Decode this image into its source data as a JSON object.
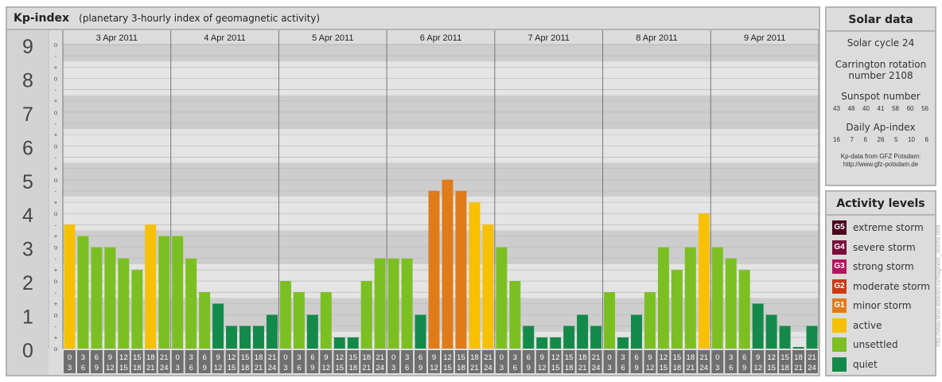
{
  "header": {
    "title": "Kp-index",
    "subtitle": "(planetary 3-hourly index of geomagnetic activity)"
  },
  "chart_data": {
    "type": "bar",
    "ylim": [
      0,
      9
    ],
    "y_tick_labels": [
      "0",
      "1",
      "2",
      "3",
      "4",
      "5",
      "6",
      "7",
      "8",
      "9"
    ],
    "minor_tick_labels": [
      "o",
      "+",
      "-"
    ],
    "days": [
      "3 Apr 2011",
      "4 Apr 2011",
      "5 Apr 2011",
      "6 Apr 2011",
      "7 Apr 2011",
      "8 Apr 2011",
      "9 Apr 2011"
    ],
    "interval_start_labels": [
      "0",
      "3",
      "6",
      "9",
      "12",
      "15",
      "18",
      "21"
    ],
    "interval_end_labels": [
      "3",
      "6",
      "9",
      "12",
      "15",
      "18",
      "21",
      "24"
    ],
    "values": [
      3.67,
      3.33,
      3.0,
      3.0,
      2.67,
      2.33,
      3.67,
      3.33,
      3.33,
      2.67,
      1.67,
      1.33,
      0.67,
      0.67,
      0.67,
      1.0,
      2.0,
      1.67,
      1.0,
      1.67,
      0.33,
      0.33,
      2.0,
      2.67,
      2.67,
      2.67,
      1.0,
      4.67,
      5.0,
      4.67,
      4.33,
      3.67,
      3.0,
      2.0,
      0.67,
      0.33,
      0.33,
      0.67,
      1.0,
      0.67,
      1.67,
      0.33,
      1.0,
      1.67,
      3.0,
      2.33,
      3.0,
      4.0,
      3.0,
      2.67,
      2.33,
      1.33,
      1.0,
      0.67,
      0.0,
      0.67
    ],
    "level_colors": {
      "quiet": "#138a4a",
      "unsettled": "#7cbf22",
      "active": "#f7c000",
      "G1": "#e07b1a",
      "G2": "#cc3a14",
      "G3": "#b3155e",
      "G4": "#7a0d3e",
      "G5": "#4a0520"
    },
    "grid": true
  },
  "solar": {
    "title": "Solar data",
    "cycle": "Solar cycle 24",
    "carrington_line1": "Carrington rotation",
    "carrington_line2": "number 2108",
    "sunspot_label": "Sunspot number",
    "sunspot_values": [
      "43",
      "48",
      "40",
      "41",
      "58",
      "60",
      "56"
    ],
    "ap_label": "Daily Ap-index",
    "ap_values": [
      "16",
      "7",
      "6",
      "26",
      "5",
      "10",
      "6"
    ],
    "source_line1": "Kp-data from GFZ Potsdam:",
    "source_line2": "http://www.gfz-potsdam.de"
  },
  "activity": {
    "title": "Activity levels",
    "items": [
      {
        "badge": "G5",
        "label": "extreme storm",
        "color": "#4a0520"
      },
      {
        "badge": "G4",
        "label": "severe storm",
        "color": "#7a0d3e"
      },
      {
        "badge": "G3",
        "label": "strong storm",
        "color": "#b3155e"
      },
      {
        "badge": "G2",
        "label": "moderate storm",
        "color": "#cc3a14"
      },
      {
        "badge": "G1",
        "label": "minor storm",
        "color": "#e07b1a"
      },
      {
        "badge": "",
        "label": "active",
        "color": "#f7c000"
      },
      {
        "badge": "",
        "label": "unsettled",
        "color": "#7cbf22"
      },
      {
        "badge": "",
        "label": "quiet",
        "color": "#138a4a"
      }
    ]
  },
  "credit": "http://www.tesis.lebedev.ru/magnetic_storms.html"
}
